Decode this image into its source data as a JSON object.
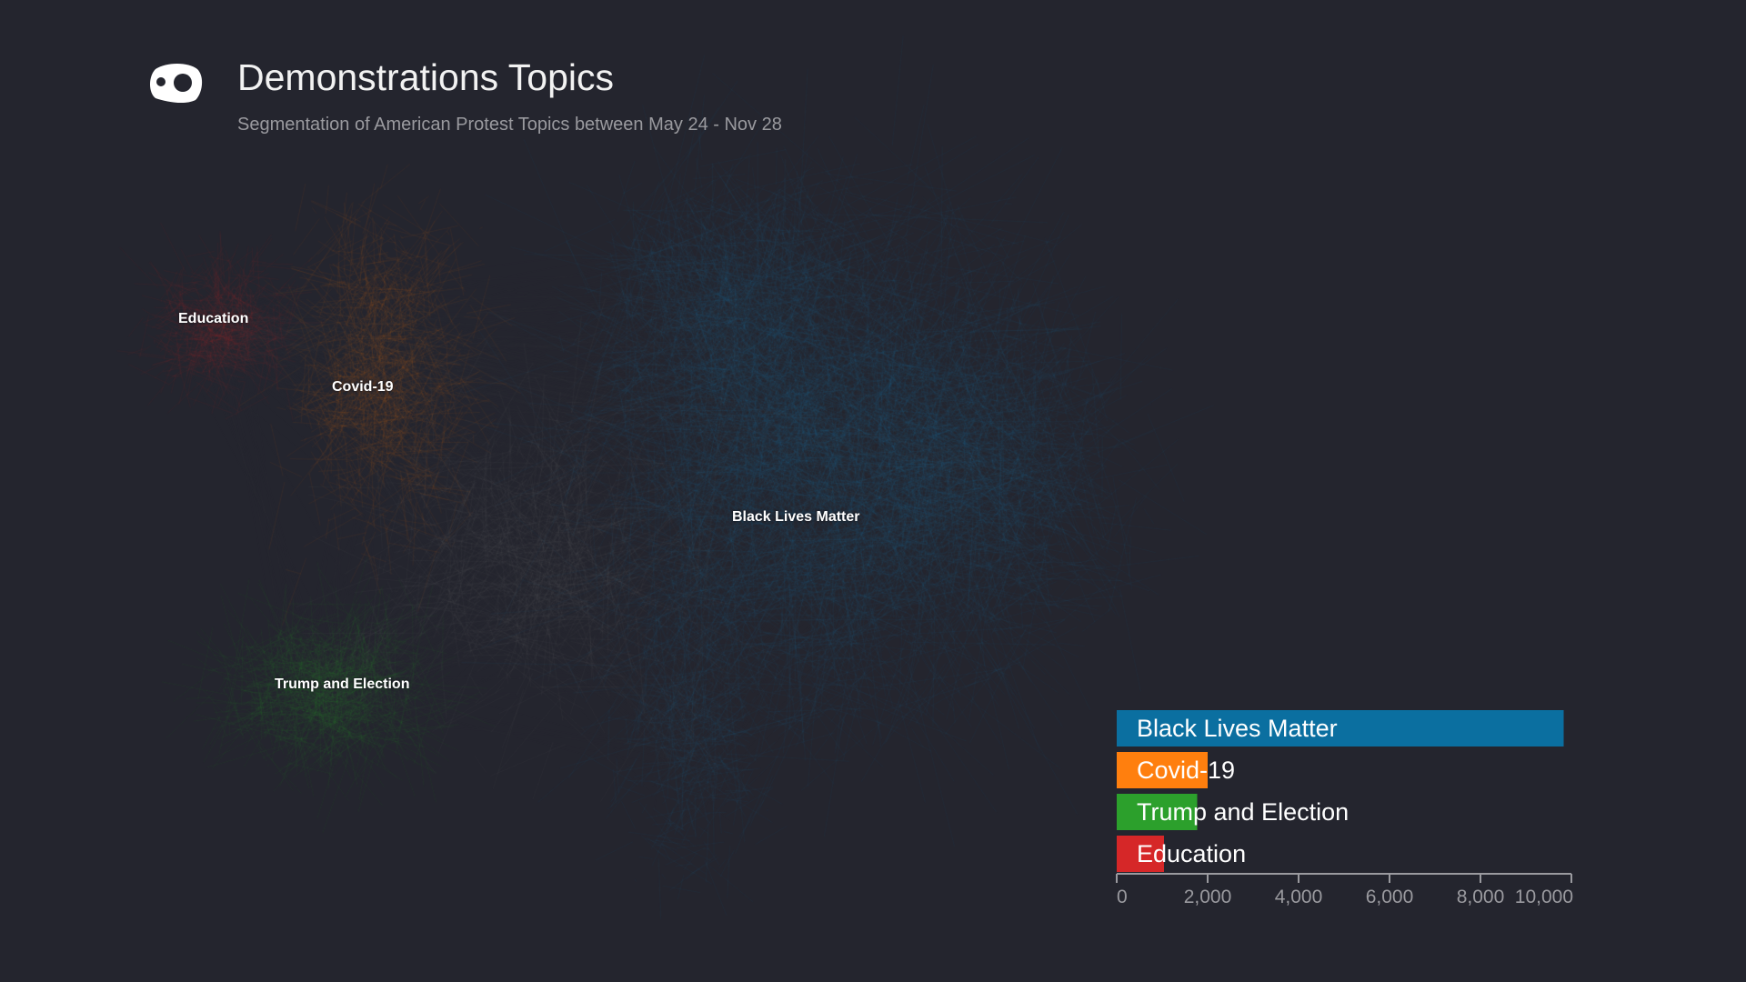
{
  "header": {
    "title": "Demonstrations Topics",
    "subtitle": "Segmentation of American Protest Topics between May 24 - Nov 28",
    "logo_icon": "eye-mask-logo-icon"
  },
  "network": {
    "clusters": [
      {
        "label": "Education",
        "color": "#d62728"
      },
      {
        "label": "Covid-19",
        "color": "#ff7f0e"
      },
      {
        "label": "Black Lives Matter",
        "color": "#1f77b4"
      },
      {
        "label": "Trump and Election",
        "color": "#2ca02c"
      }
    ],
    "unclustered_color": "#7a7a7a"
  },
  "chart_data": {
    "type": "bar",
    "orientation": "horizontal",
    "categories": [
      "Black Lives Matter",
      "Covid-19",
      "Trump and Election",
      "Education"
    ],
    "values": [
      9830,
      2000,
      1770,
      1040
    ],
    "colors": [
      "#0b6fa0",
      "#ff7f0e",
      "#2ca02c",
      "#d62728"
    ],
    "xlim": [
      0,
      10000
    ],
    "xticks": [
      0,
      2000,
      4000,
      6000,
      8000,
      10000
    ],
    "xtick_labels": [
      "0",
      "2,000",
      "4,000",
      "6,000",
      "8,000",
      "10,000"
    ],
    "title": "",
    "xlabel": "",
    "ylabel": "",
    "grid": false
  }
}
